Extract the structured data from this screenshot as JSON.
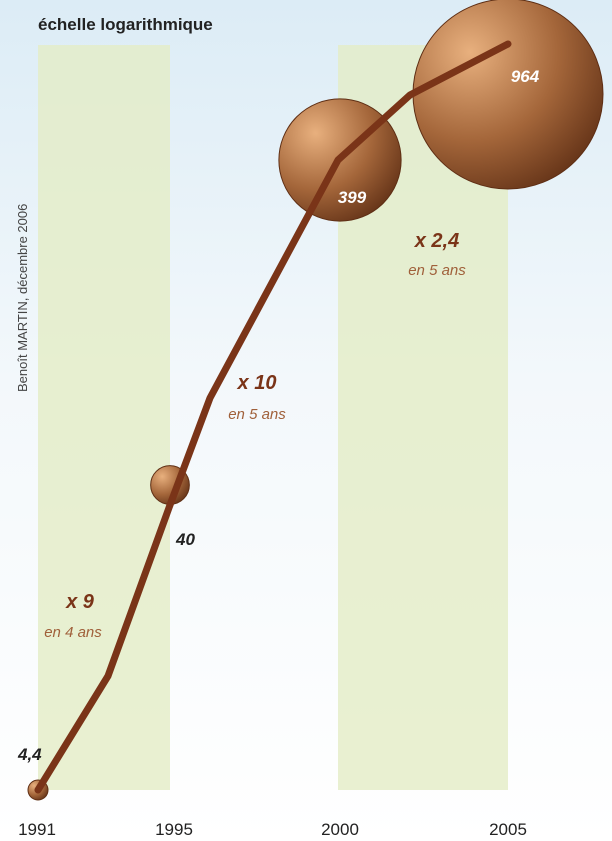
{
  "chart_data": {
    "type": "line",
    "scale_note": "échelle logarithmique",
    "credit": "Benoît MARTIN, décembre 2006",
    "y_scale": "log",
    "x_ticks": [
      "1991",
      "1995",
      "2000",
      "2005"
    ],
    "series": [
      {
        "points": [
          {
            "x": 1991,
            "y": 4.4
          },
          {
            "x": 1993,
            "y": 10
          },
          {
            "x": 1995,
            "y": 40
          },
          {
            "x": 1997,
            "y": 100
          },
          {
            "x": 2000,
            "y": 399
          },
          {
            "x": 2002,
            "y": 640
          },
          {
            "x": 2005,
            "y": 964
          }
        ]
      }
    ],
    "points_of_interest": [
      {
        "x": 1991,
        "y": 4.4,
        "label": "4,4"
      },
      {
        "x": 1995,
        "y": 40,
        "label": "40"
      },
      {
        "x": 2000,
        "y": 399,
        "label": "399"
      },
      {
        "x": 2005,
        "y": 964,
        "label": "964"
      }
    ],
    "annotations": [
      {
        "factor": "x 9",
        "period": "en 4 ans"
      },
      {
        "factor": "x 10",
        "period": "en 5 ans"
      },
      {
        "factor": "x 2,4",
        "period": "en 5 ans"
      }
    ],
    "colors": {
      "line": "#7a3418",
      "band": "#e3ecc6",
      "sky_top": "#dfeef7",
      "bubble_light": "#e1a574",
      "bubble_dark": "#6b3618",
      "annotation_factor": "#7a3418",
      "annotation_period": "#a0603a"
    }
  }
}
